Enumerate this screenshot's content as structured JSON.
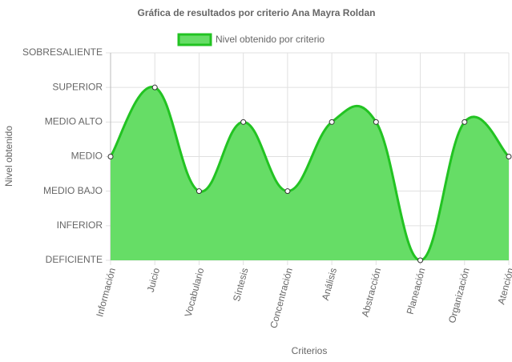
{
  "chart_data": {
    "type": "area",
    "title": "Gráfica de resultados por criterio Ana Mayra Roldan",
    "x_label": "Criterios",
    "y_label": "Nivel obtenido",
    "categories": [
      "Información",
      "Juicio",
      "Vocabulario",
      "Síntesis",
      "Concentración",
      "Análisis",
      "Abstracción",
      "Planeación",
      "Organización",
      "Atención"
    ],
    "series": [
      {
        "name": "Nivel obtenido por criterio",
        "color": "#22c322",
        "fill_color": "#66dd66",
        "values": [
          3,
          5,
          2,
          4,
          2,
          4,
          4,
          0,
          4,
          3
        ]
      }
    ],
    "ylim": [
      0,
      6
    ],
    "yticks": [
      {
        "value": 0,
        "label": "DEFICIENTE"
      },
      {
        "value": 1,
        "label": "INFERIOR"
      },
      {
        "value": 2,
        "label": "MEDIO BAJO"
      },
      {
        "value": 3,
        "label": "MEDIO"
      },
      {
        "value": 4,
        "label": "MEDIO ALTO"
      },
      {
        "value": 5,
        "label": "SUPERIOR"
      },
      {
        "value": 6,
        "label": "SOBRESALIENTE"
      }
    ],
    "grid": true
  }
}
